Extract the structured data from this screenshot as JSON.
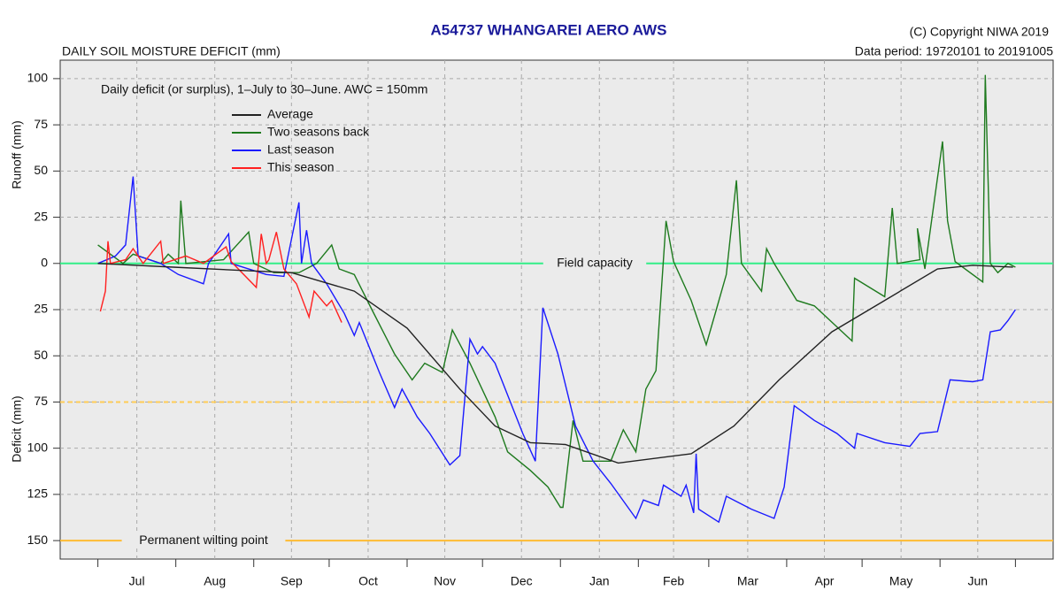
{
  "chart_data": {
    "type": "line",
    "title": "A54737  WHANGAREI AERO AWS",
    "subtitle": "DAILY SOIL MOISTURE DEFICIT (mm)",
    "copyright": "(C) Copyright NIWA  2019",
    "data_period": "Data period:  19720101  to  20191005",
    "note": "Daily deficit (or surplus), 1–July to 30–June.  AWC = 150mm",
    "y_label_top": "Runoff (mm)",
    "y_label_bottom": "Deficit (mm)",
    "months": [
      "Jul",
      "Aug",
      "Sep",
      "Oct",
      "Nov",
      "Dec",
      "Jan",
      "Feb",
      "Mar",
      "Apr",
      "May",
      "Jun"
    ],
    "xlim": [
      -15,
      380
    ],
    "xticks": [
      0,
      31,
      62,
      92,
      123,
      153,
      184,
      215,
      243,
      274,
      304,
      335,
      365
    ],
    "ylim": [
      -160,
      110
    ],
    "yticks": [
      100,
      75,
      50,
      25,
      0,
      {
        "value": -25,
        "label": "25"
      },
      {
        "value": -50,
        "label": "50"
      },
      {
        "value": -75,
        "label": "75"
      },
      {
        "value": -100,
        "label": "100"
      },
      {
        "value": -125,
        "label": "125"
      },
      {
        "value": -150,
        "label": "150"
      }
    ],
    "grid": true,
    "reference_lines": [
      {
        "value": 0,
        "label": "Field capacity",
        "color": "#33ee88",
        "style": "solid"
      },
      {
        "value": -75,
        "color": "#ffcc55",
        "style": "dashed"
      },
      {
        "value": -150,
        "label": "Permanent wilting point",
        "color": "#ffbb33",
        "style": "solid"
      }
    ],
    "series": [
      {
        "name": "Average",
        "color": "#222222",
        "x": [
          0,
          30,
          60,
          77,
          102,
          123,
          144,
          158,
          172,
          186,
          207,
          236,
          253,
          271,
          292,
          313,
          334,
          348,
          364
        ],
        "values": [
          0,
          -2,
          -4,
          -5,
          -15,
          -35,
          -68,
          -88,
          -97,
          -98,
          -108,
          -103,
          -88,
          -63,
          -37,
          -20,
          -3,
          -1,
          -2
        ]
      },
      {
        "name": "Two seasons back",
        "color": "#1e7a1e",
        "x": [
          0,
          10,
          14,
          25,
          28,
          32,
          33,
          35,
          50,
          60,
          62,
          70,
          80,
          87,
          93,
          96,
          102,
          109,
          118,
          125,
          130,
          137,
          141,
          148,
          158,
          163,
          172,
          179,
          184,
          185,
          189,
          193,
          204,
          209,
          214,
          218,
          222,
          226,
          229,
          236,
          242,
          246,
          250,
          254,
          256,
          264,
          266,
          269,
          278,
          285,
          300,
          301,
          313,
          316,
          318,
          327,
          326,
          329,
          336,
          338,
          341,
          352,
          353,
          355,
          358,
          362,
          365
        ],
        "values": [
          10,
          0,
          5,
          0,
          5,
          0,
          34,
          0,
          2,
          17,
          0,
          -5,
          -5,
          0,
          10,
          -3,
          -6,
          -25,
          -49,
          -63,
          -54,
          -59,
          -36,
          -54,
          -83,
          -102,
          -112,
          -121,
          -132,
          -132,
          -85,
          -107,
          -107,
          -90,
          -102,
          -68,
          -58,
          23,
          1,
          -20,
          -44,
          -25,
          -6,
          45,
          0,
          -15,
          8,
          0,
          -20,
          -23,
          -42,
          -8,
          -18,
          30,
          0,
          2,
          19,
          -3,
          66,
          23,
          1,
          -10,
          102,
          0,
          -5,
          0,
          -2
        ]
      },
      {
        "name": "Last season",
        "color": "#1a1aff",
        "x": [
          0,
          7,
          11,
          14,
          16,
          25,
          32,
          42,
          44,
          52,
          53,
          67,
          74,
          80,
          81,
          83,
          85,
          91,
          98,
          102,
          104,
          112,
          118,
          121,
          127,
          132,
          140,
          144,
          148,
          151,
          153,
          158,
          169,
          174,
          177,
          183,
          190,
          197,
          204,
          214,
          217,
          223,
          225,
          232,
          234,
          237,
          238,
          239,
          247,
          250,
          260,
          269,
          273,
          277,
          285,
          294,
          301,
          302,
          313,
          323,
          327,
          334,
          339,
          348,
          352,
          355,
          359,
          362,
          365
        ],
        "values": [
          0,
          4,
          10,
          47,
          4,
          0,
          -6,
          -11,
          0,
          16,
          0,
          -6,
          -7,
          33,
          0,
          18,
          0,
          -11,
          -27,
          -39,
          -32,
          -59,
          -78,
          -68,
          -83,
          -92,
          -109,
          -104,
          -41,
          -49,
          -45,
          -54,
          -92,
          -107,
          -24,
          -49,
          -88,
          -107,
          -119,
          -138,
          -128,
          -131,
          -120,
          -126,
          -120,
          -135,
          -103,
          -133,
          -140,
          -126,
          -133,
          -138,
          -121,
          -77,
          -85,
          -92,
          -100,
          -92,
          -97,
          -99,
          -92,
          -91,
          -63,
          -64,
          -63,
          -37,
          -36,
          -31,
          -25
        ]
      },
      {
        "name": "This season",
        "color": "#ff2020",
        "x": [
          1,
          3,
          4,
          5,
          11,
          14,
          18,
          25,
          26,
          35,
          42,
          51,
          53,
          63,
          65,
          67,
          68,
          71,
          74,
          79,
          84,
          86,
          91,
          93,
          97
        ],
        "values": [
          -26,
          -15,
          12,
          0,
          2,
          8,
          0,
          12,
          0,
          4,
          0,
          9,
          1,
          -13,
          16,
          0,
          2,
          17,
          -3,
          -11,
          -29,
          -15,
          -23,
          -20,
          -32
        ]
      }
    ]
  }
}
